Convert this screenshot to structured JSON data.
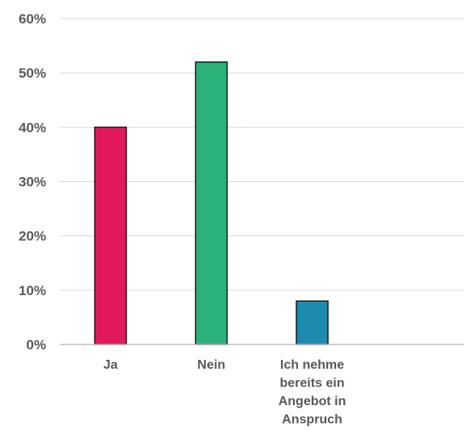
{
  "chart_data": {
    "type": "bar",
    "categories": [
      [
        "Ja"
      ],
      [
        "Nein"
      ],
      [
        "Ich nehme",
        "bereits ein",
        "Angebot in",
        "Anspruch"
      ]
    ],
    "values": [
      40,
      52,
      8
    ],
    "colors": [
      "#e0195a",
      "#2bb27a",
      "#1d8ab0"
    ],
    "y_ticks": [
      "0%",
      "10%",
      "20%",
      "30%",
      "40%",
      "50%",
      "60%"
    ],
    "ylim": [
      0,
      60
    ],
    "y_unit": "%",
    "grid": true,
    "legend": "none",
    "title": "",
    "xlabel": "",
    "ylabel": ""
  }
}
